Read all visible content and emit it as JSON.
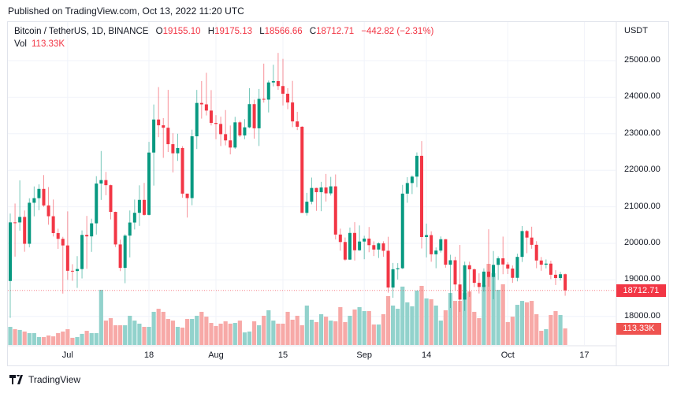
{
  "published": "Published on TradingView.com, Oct 13, 2022 11:20 UTC",
  "legend": {
    "symbol": "Bitcoin / TetherUS, 1D, BINANCE",
    "o_label": "O",
    "o": "19155.10",
    "h_label": "H",
    "h": "19175.13",
    "l_label": "L",
    "l": "18566.66",
    "c_label": "C",
    "c": "18712.71",
    "change": "−442.82 (−2.31%)",
    "vol_label": "Vol",
    "vol": "113.33K"
  },
  "logo": "TradingView",
  "colors": {
    "up": "#089981",
    "down": "#f23645",
    "vol_up": "#92d2cc",
    "vol_down": "#f7a9a7",
    "grid": "#f0f3fa"
  },
  "chart_data": {
    "type": "candlestick",
    "currency": "USDT",
    "ylim": [
      17800,
      25300
    ],
    "y_ticks": [
      "25000.00",
      "24000.00",
      "23000.00",
      "22000.00",
      "21000.00",
      "20000.00",
      "19000.00",
      "18000.00"
    ],
    "x_ticks": [
      {
        "label": "Jul",
        "date": "2022-07-01"
      },
      {
        "label": "18",
        "date": "2022-07-18"
      },
      {
        "label": "Aug",
        "date": "2022-08-01"
      },
      {
        "label": "15",
        "date": "2022-08-15"
      },
      {
        "label": "Sep",
        "date": "2022-09-01"
      },
      {
        "label": "14",
        "date": "2022-09-14"
      },
      {
        "label": "Oct",
        "date": "2022-10-01"
      },
      {
        "label": "17",
        "date": "2022-10-17"
      }
    ],
    "start_date": "2022-06-19",
    "last_price": "18712.71",
    "last_volume": "113.33K",
    "ohlc": [
      [
        18970,
        20815,
        17960,
        20574
      ],
      [
        20574,
        21090,
        19637,
        20573
      ],
      [
        20573,
        21723,
        20348,
        20723
      ],
      [
        20723,
        20900,
        19770,
        19988
      ],
      [
        19988,
        21233,
        19890,
        21111
      ],
      [
        21111,
        21558,
        20740,
        21237
      ],
      [
        21237,
        21614,
        20907,
        21491
      ],
      [
        21491,
        21869,
        21000,
        21038
      ],
      [
        21038,
        21540,
        20510,
        20742
      ],
      [
        20742,
        21200,
        20188,
        20281
      ],
      [
        20281,
        20400,
        19850,
        20124
      ],
      [
        20124,
        20179,
        18626,
        19943
      ],
      [
        19943,
        20876,
        19000,
        19249
      ],
      [
        19249,
        19430,
        18975,
        19243
      ],
      [
        19243,
        19650,
        18781,
        19297
      ],
      [
        19297,
        20354,
        19040,
        20231
      ],
      [
        20231,
        20750,
        19304,
        20191
      ],
      [
        20191,
        20675,
        19767,
        20548
      ],
      [
        20548,
        21838,
        20240,
        21637
      ],
      [
        21637,
        22527,
        21189,
        21731
      ],
      [
        21731,
        21955,
        21317,
        21592
      ],
      [
        21592,
        21607,
        20655,
        20861
      ],
      [
        20861,
        20868,
        19900,
        19970
      ],
      [
        19970,
        20100,
        19240,
        19329
      ],
      [
        19329,
        20250,
        18910,
        20212
      ],
      [
        20212,
        20900,
        19616,
        20570
      ],
      [
        20570,
        21200,
        20380,
        20836
      ],
      [
        20836,
        21588,
        20478,
        21190
      ],
      [
        21190,
        21654,
        20757,
        20779
      ],
      [
        20779,
        22777,
        20763,
        22485
      ],
      [
        22485,
        23800,
        21581,
        23389
      ],
      [
        23389,
        24276,
        22906,
        23231
      ],
      [
        23231,
        23427,
        22341,
        23164
      ],
      [
        23164,
        24200,
        22500,
        22714
      ],
      [
        22714,
        23014,
        21940,
        22465
      ],
      [
        22465,
        23000,
        22257,
        22609
      ],
      [
        22609,
        22659,
        21250,
        21361
      ],
      [
        21361,
        21361,
        20706,
        21239
      ],
      [
        21239,
        23111,
        21043,
        22930
      ],
      [
        22930,
        24199,
        22582,
        23843
      ],
      [
        23843,
        24442,
        23414,
        23804
      ],
      [
        23804,
        24668,
        23500,
        23634
      ],
      [
        23634,
        24194,
        23227,
        23296
      ],
      [
        23296,
        23509,
        22850,
        23268
      ],
      [
        23268,
        23466,
        22664,
        22988
      ],
      [
        22988,
        23648,
        22681,
        22818
      ],
      [
        22818,
        23225,
        22435,
        22622
      ],
      [
        22622,
        23462,
        22586,
        23312
      ],
      [
        23312,
        23354,
        22909,
        22954
      ],
      [
        22954,
        23400,
        22850,
        23175
      ],
      [
        23175,
        24245,
        23152,
        23810
      ],
      [
        23810,
        23933,
        22865,
        23149
      ],
      [
        23149,
        24226,
        22664,
        23954
      ],
      [
        23954,
        24918,
        23852,
        23934
      ],
      [
        23934,
        24456,
        23583,
        24403
      ],
      [
        24403,
        24888,
        24296,
        24441
      ],
      [
        24441,
        25211,
        24200,
        24305
      ],
      [
        24305,
        25050,
        23773,
        24095
      ],
      [
        24095,
        24247,
        23671,
        23855
      ],
      [
        23855,
        24446,
        23180,
        23337
      ],
      [
        23337,
        23600,
        23100,
        23191
      ],
      [
        23191,
        23207,
        20868,
        20834
      ],
      [
        20834,
        21382,
        20761,
        21140
      ],
      [
        21140,
        21800,
        21069,
        21516
      ],
      [
        21516,
        21522,
        20890,
        21400
      ],
      [
        21400,
        21684,
        20880,
        21529
      ],
      [
        21529,
        21900,
        21145,
        21368
      ],
      [
        21368,
        21819,
        21310,
        21560
      ],
      [
        21560,
        21886,
        20107,
        20241
      ],
      [
        20241,
        20402,
        19800,
        20037
      ],
      [
        20037,
        20160,
        19521,
        19555
      ],
      [
        19555,
        20433,
        19542,
        20285
      ],
      [
        20285,
        20580,
        19530,
        19811
      ],
      [
        19811,
        20490,
        19797,
        20050
      ],
      [
        20050,
        20208,
        19565,
        20131
      ],
      [
        20131,
        20448,
        19757,
        19951
      ],
      [
        19951,
        20055,
        19652,
        19831
      ],
      [
        19831,
        20029,
        19600,
        20000
      ],
      [
        20000,
        20057,
        19635,
        19797
      ],
      [
        19797,
        20180,
        18650,
        18791
      ],
      [
        18791,
        19464,
        18510,
        19292
      ],
      [
        19292,
        19459,
        19011,
        19319
      ],
      [
        19319,
        21600,
        19297,
        21361
      ],
      [
        21361,
        21811,
        21111,
        21651
      ],
      [
        21651,
        21860,
        21350,
        21826
      ],
      [
        21826,
        22488,
        21538,
        22395
      ],
      [
        22395,
        22799,
        19860,
        20173
      ],
      [
        20173,
        20541,
        19617,
        20226
      ],
      [
        20226,
        20330,
        19497,
        19701
      ],
      [
        19701,
        19888,
        19320,
        19803
      ],
      [
        19803,
        20189,
        19748,
        20113
      ],
      [
        20113,
        20117,
        19335,
        19416
      ],
      [
        19416,
        19688,
        18232,
        19538
      ],
      [
        19538,
        19635,
        18711,
        18875
      ],
      [
        18875,
        19956,
        18125,
        18461
      ],
      [
        18461,
        19500,
        18152,
        19401
      ],
      [
        19401,
        19498,
        18533,
        19289
      ],
      [
        19289,
        19316,
        18805,
        18920
      ],
      [
        18920,
        19180,
        18629,
        18807
      ],
      [
        18807,
        19316,
        18680,
        19227
      ],
      [
        19227,
        20385,
        18816,
        19080
      ],
      [
        19080,
        19790,
        18471,
        19412
      ],
      [
        19412,
        19645,
        19000,
        19591
      ],
      [
        19591,
        20185,
        19155,
        19423
      ],
      [
        19423,
        19484,
        19160,
        19311
      ],
      [
        19311,
        19395,
        18920,
        19057
      ],
      [
        19057,
        19719,
        18960,
        19630
      ],
      [
        19630,
        20475,
        19490,
        20337
      ],
      [
        20337,
        20365,
        19730,
        20158
      ],
      [
        20158,
        20456,
        19853,
        19960
      ],
      [
        19960,
        20060,
        19320,
        19531
      ],
      [
        19531,
        19627,
        19250,
        19417
      ],
      [
        19417,
        19560,
        19316,
        19446
      ],
      [
        19446,
        19526,
        19020,
        19141
      ],
      [
        19141,
        19266,
        18860,
        19051
      ],
      [
        19051,
        19221,
        18984,
        19155
      ],
      [
        19155.1,
        19175.13,
        18566.66,
        18712.71
      ]
    ],
    "volume_k": [
      124,
      108,
      103,
      92,
      81,
      81,
      54,
      54,
      65,
      59,
      81,
      92,
      108,
      49,
      54,
      76,
      97,
      81,
      81,
      378,
      167,
      184,
      135,
      135,
      135,
      200,
      167,
      146,
      124,
      124,
      227,
      248,
      227,
      178,
      167,
      124,
      119,
      178,
      178,
      200,
      227,
      194,
      151,
      130,
      146,
      162,
      146,
      151,
      167,
      86,
      92,
      162,
      135,
      200,
      238,
      167,
      146,
      146,
      227,
      173,
      200,
      135,
      270,
      173,
      157,
      211,
      194,
      167,
      162,
      259,
      157,
      200,
      243,
      259,
      232,
      232,
      140,
      140,
      211,
      335,
      270,
      248,
      400,
      292,
      265,
      373,
      405,
      319,
      313,
      270,
      167,
      238,
      356,
      302,
      302,
      356,
      367,
      227,
      184,
      410,
      556,
      491,
      378,
      416,
      157,
      194,
      275,
      302,
      292,
      302,
      211,
      97,
      108,
      205,
      232,
      205,
      113.33
    ]
  }
}
